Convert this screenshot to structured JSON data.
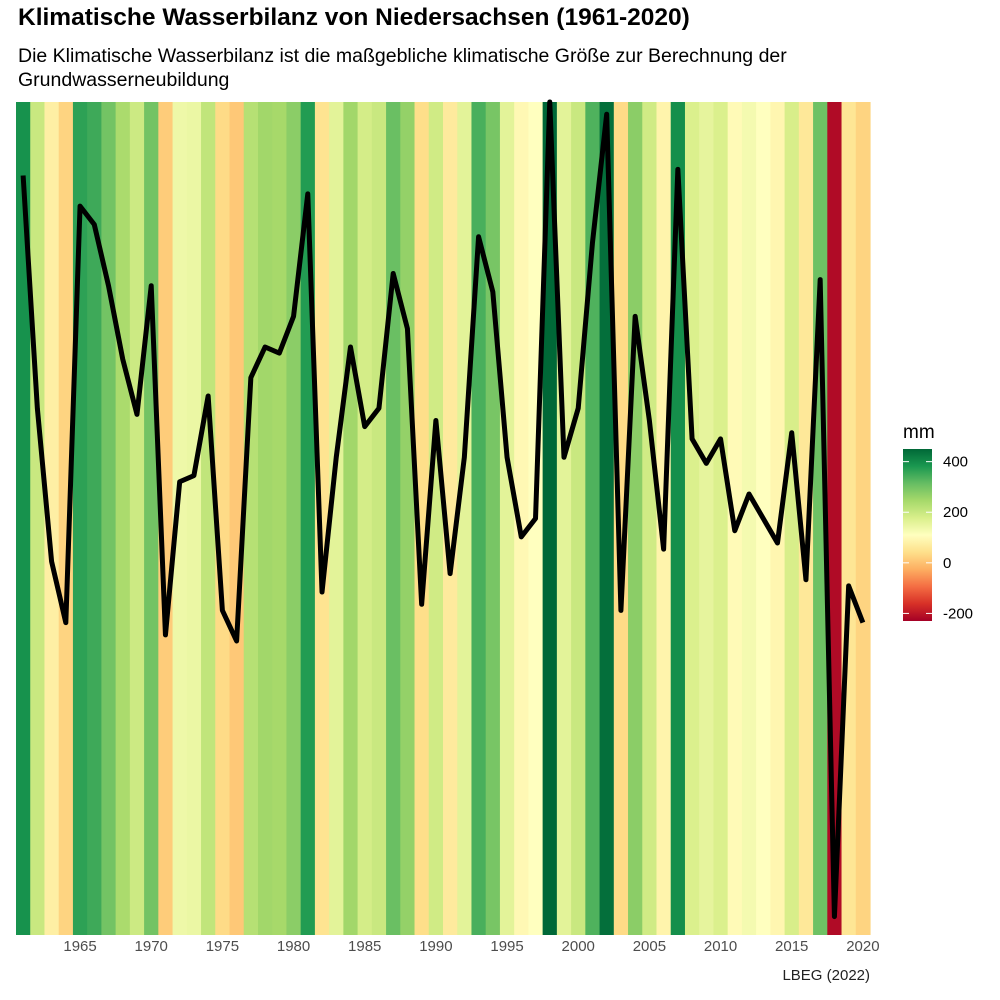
{
  "title": "Klimatische Wasserbilanz von Niedersachsen (1961-2020)",
  "subtitle": "Die Klimatische Wasserbilanz ist die maßgebliche klimatische Größe zur Berechnung der Grundwasserneubildung",
  "caption": "LBEG (2022)",
  "legend": {
    "title": "mm",
    "ticks": [
      400,
      200,
      0,
      -200
    ],
    "range": [
      -230,
      450
    ]
  },
  "colors": {
    "scale": [
      "#a50026",
      "#d73027",
      "#f46d43",
      "#fdae61",
      "#fee08b",
      "#ffffbf",
      "#d9ef8b",
      "#a6d96a",
      "#66bd63",
      "#1a9850",
      "#006837"
    ],
    "line": "#000000"
  },
  "chart_data": {
    "type": "line",
    "title": "Klimatische Wasserbilanz von Niedersachsen (1961-2020)",
    "subtitle": "Die Klimatische Wasserbilanz ist die maßgebliche klimatische Größe zur Berechnung der Grundwasserneubildung",
    "xlabel": "",
    "ylabel": "",
    "xlim": [
      1960.5,
      2020.5
    ],
    "ylim": [
      -230,
      450
    ],
    "x_ticks": [
      1965,
      1970,
      1975,
      1980,
      1985,
      1990,
      1995,
      2000,
      2005,
      2010,
      2015,
      2020
    ],
    "background": "warming-stripes colored by value (mm)",
    "x": [
      1961,
      1962,
      1963,
      1964,
      1965,
      1966,
      1967,
      1968,
      1969,
      1970,
      1971,
      1972,
      1973,
      1974,
      1975,
      1976,
      1977,
      1978,
      1979,
      1980,
      1981,
      1982,
      1983,
      1984,
      1985,
      1986,
      1987,
      1988,
      1989,
      1990,
      1991,
      1992,
      1993,
      1994,
      1995,
      1996,
      1997,
      1998,
      1999,
      2000,
      2001,
      2002,
      2003,
      2004,
      2005,
      2006,
      2007,
      2008,
      2009,
      2010,
      2011,
      2012,
      2013,
      2014,
      2015,
      2016,
      2017,
      2018,
      2019,
      2020
    ],
    "values": [
      390,
      200,
      75,
      25,
      365,
      350,
      300,
      240,
      195,
      300,
      15,
      140,
      145,
      210,
      35,
      10,
      225,
      250,
      245,
      275,
      375,
      50,
      160,
      250,
      185,
      200,
      310,
      265,
      40,
      190,
      65,
      160,
      340,
      295,
      160,
      95,
      110,
      450,
      160,
      200,
      335,
      440,
      35,
      275,
      190,
      85,
      395,
      175,
      155,
      175,
      100,
      130,
      110,
      90,
      180,
      60,
      305,
      -215,
      55,
      25
    ],
    "grid": false,
    "legend": "right"
  }
}
